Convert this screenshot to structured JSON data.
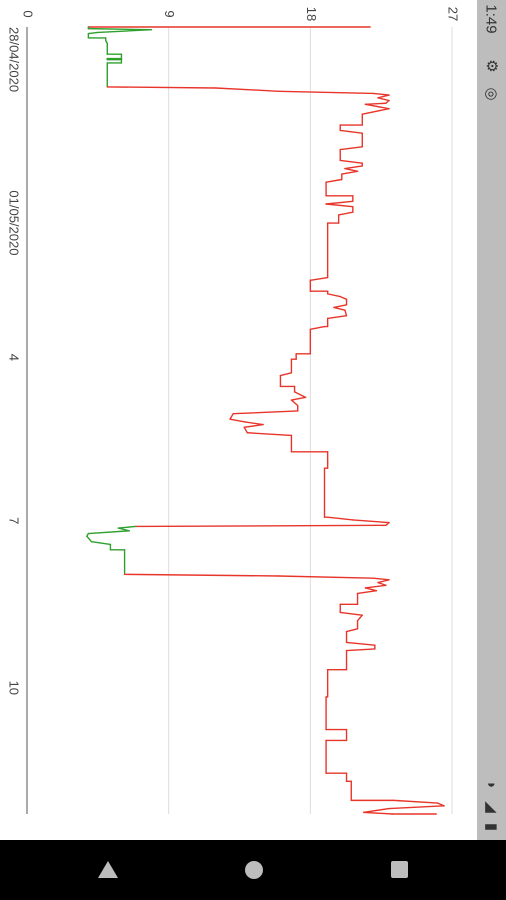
{
  "status_bar": {
    "time": "1:49",
    "left_icons": [
      "gear-icon",
      "location-icon"
    ],
    "right_icons": [
      "wifi-icon",
      "signal-icon",
      "battery-icon"
    ]
  },
  "navigation_bar": {
    "buttons": [
      "back-button",
      "home-button",
      "recents-button"
    ]
  },
  "chart_data": {
    "type": "line",
    "orientation": "rotated-90-clockwise",
    "title": "",
    "xlabel": "",
    "ylabel": "",
    "ylim": [
      0,
      27
    ],
    "y_ticks": [
      "0",
      "9",
      "18",
      "27"
    ],
    "x_ticks": [
      {
        "label": "28/04/2020",
        "pos": 0.0
      },
      {
        "label": "01/05/2020",
        "pos": 3.0
      },
      {
        "label": "4",
        "pos": 6.0
      },
      {
        "label": "7",
        "pos": 9.0
      },
      {
        "label": "10",
        "pos": 12.0
      }
    ],
    "xlim": [
      0,
      14.45
    ],
    "grid": true,
    "colors": {
      "high": "#e8352a",
      "low": "#2ea02e",
      "grid": "#dddddd",
      "axis": "#555555"
    },
    "series": [
      {
        "color_rule": "green below ~8.5, red above",
        "points": [
          [
            0.0,
            21.8
          ],
          [
            0.0,
            3.9
          ],
          [
            0.03,
            3.9
          ],
          [
            0.05,
            7.9
          ],
          [
            0.1,
            4.5
          ],
          [
            0.12,
            3.9
          ],
          [
            0.2,
            3.9
          ],
          [
            0.2,
            5.0
          ],
          [
            0.25,
            5.0
          ],
          [
            0.3,
            5.1
          ],
          [
            0.5,
            5.1
          ],
          [
            0.5,
            6.0
          ],
          [
            0.58,
            6.0
          ],
          [
            0.58,
            5.1
          ],
          [
            0.6,
            5.1
          ],
          [
            0.6,
            6.0
          ],
          [
            0.66,
            6.0
          ],
          [
            0.66,
            5.1
          ],
          [
            1.1,
            5.1
          ],
          [
            1.12,
            12.0
          ],
          [
            1.18,
            16.0
          ],
          [
            1.22,
            22.0
          ],
          [
            1.25,
            23.0
          ],
          [
            1.3,
            22.3
          ],
          [
            1.35,
            23.0
          ],
          [
            1.4,
            22.8
          ],
          [
            1.42,
            21.5
          ],
          [
            1.5,
            23.0
          ],
          [
            1.6,
            21.3
          ],
          [
            1.8,
            21.3
          ],
          [
            1.8,
            19.9
          ],
          [
            1.9,
            19.9
          ],
          [
            1.95,
            21.3
          ],
          [
            2.2,
            21.3
          ],
          [
            2.25,
            19.9
          ],
          [
            2.45,
            19.9
          ],
          [
            2.5,
            21.3
          ],
          [
            2.55,
            21.3
          ],
          [
            2.6,
            20.2
          ],
          [
            2.65,
            21.0
          ],
          [
            2.7,
            20.0
          ],
          [
            2.8,
            20.0
          ],
          [
            2.85,
            19.0
          ],
          [
            3.1,
            19.0
          ],
          [
            3.1,
            20.7
          ],
          [
            3.2,
            20.7
          ],
          [
            3.25,
            19.0
          ],
          [
            3.3,
            20.7
          ],
          [
            3.4,
            20.7
          ],
          [
            3.45,
            19.8
          ],
          [
            3.6,
            19.8
          ],
          [
            3.6,
            19.1
          ],
          [
            4.6,
            19.1
          ],
          [
            4.65,
            18.0
          ],
          [
            4.85,
            18.0
          ],
          [
            4.85,
            19.1
          ],
          [
            4.9,
            19.1
          ],
          [
            4.95,
            19.9
          ],
          [
            5.0,
            20.3
          ],
          [
            5.1,
            20.3
          ],
          [
            5.15,
            19.5
          ],
          [
            5.2,
            20.2
          ],
          [
            5.3,
            20.3
          ],
          [
            5.35,
            19.1
          ],
          [
            5.5,
            19.1
          ],
          [
            5.5,
            18.9
          ],
          [
            5.55,
            18.0
          ],
          [
            6.0,
            18.0
          ],
          [
            6.0,
            17.1
          ],
          [
            6.1,
            17.1
          ],
          [
            6.1,
            16.8
          ],
          [
            6.35,
            16.8
          ],
          [
            6.4,
            16.1
          ],
          [
            6.6,
            16.1
          ],
          [
            6.6,
            17.0
          ],
          [
            6.7,
            17.0
          ],
          [
            6.8,
            17.7
          ],
          [
            6.85,
            16.8
          ],
          [
            6.95,
            17.2
          ],
          [
            7.05,
            17.2
          ],
          [
            7.1,
            13.1
          ],
          [
            7.2,
            12.9
          ],
          [
            7.25,
            13.8
          ],
          [
            7.3,
            15.0
          ],
          [
            7.35,
            13.8
          ],
          [
            7.45,
            14.0
          ],
          [
            7.5,
            16.8
          ],
          [
            7.8,
            16.8
          ],
          [
            7.8,
            19.1
          ],
          [
            8.0,
            19.1
          ],
          [
            8.0,
            19.1
          ],
          [
            8.1,
            19.1
          ],
          [
            8.1,
            18.9
          ],
          [
            9.0,
            18.9
          ],
          [
            9.0,
            19.1
          ],
          [
            9.05,
            20.7
          ],
          [
            9.1,
            23.0
          ],
          [
            9.15,
            22.8
          ],
          [
            9.17,
            6.9
          ],
          [
            9.2,
            5.8
          ],
          [
            9.25,
            6.5
          ],
          [
            9.3,
            3.9
          ],
          [
            9.35,
            3.8
          ],
          [
            9.45,
            4.1
          ],
          [
            9.5,
            5.3
          ],
          [
            9.6,
            5.3
          ],
          [
            9.6,
            6.2
          ],
          [
            10.05,
            6.2
          ],
          [
            10.08,
            16.0
          ],
          [
            10.12,
            22.0
          ],
          [
            10.15,
            23.0
          ],
          [
            10.2,
            22.3
          ],
          [
            10.25,
            22.8
          ],
          [
            10.3,
            21.5
          ],
          [
            10.35,
            22.2
          ],
          [
            10.4,
            21.0
          ],
          [
            10.6,
            21.0
          ],
          [
            10.6,
            19.9
          ],
          [
            10.75,
            19.9
          ],
          [
            10.8,
            21.3
          ],
          [
            10.9,
            21.0
          ],
          [
            11.05,
            21.0
          ],
          [
            11.1,
            20.3
          ],
          [
            11.3,
            20.3
          ],
          [
            11.35,
            22.1
          ],
          [
            11.42,
            22.1
          ],
          [
            11.45,
            20.3
          ],
          [
            11.8,
            20.3
          ],
          [
            11.8,
            19.1
          ],
          [
            12.2,
            19.1
          ],
          [
            12.3,
            19.1
          ],
          [
            12.3,
            19.0
          ],
          [
            12.9,
            19.0
          ],
          [
            12.9,
            20.3
          ],
          [
            13.1,
            20.3
          ],
          [
            13.1,
            19.0
          ],
          [
            13.7,
            19.0
          ],
          [
            13.7,
            20.3
          ],
          [
            13.85,
            20.3
          ],
          [
            13.85,
            20.6
          ],
          [
            14.2,
            20.6
          ],
          [
            14.2,
            23.3
          ],
          [
            14.25,
            26.1
          ],
          [
            14.3,
            26.5
          ],
          [
            14.35,
            23.0
          ],
          [
            14.42,
            21.4
          ],
          [
            14.45,
            23.2
          ],
          [
            14.45,
            26.0
          ]
        ]
      }
    ]
  }
}
